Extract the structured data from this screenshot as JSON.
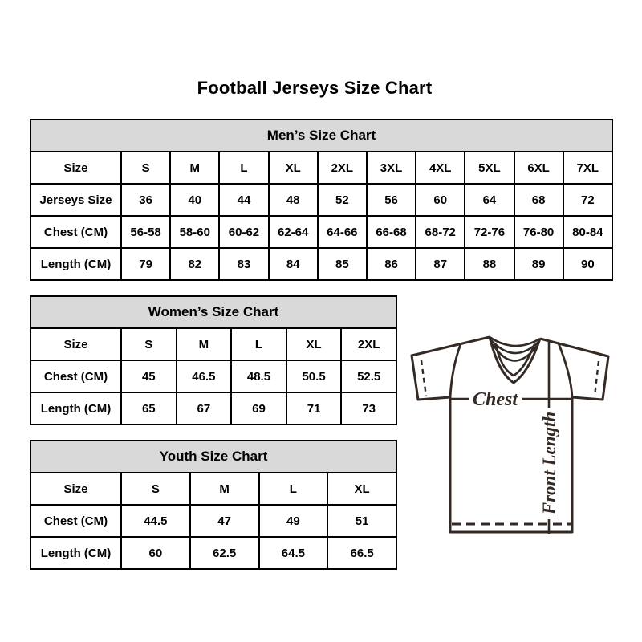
{
  "header": {
    "title": "Football Jerseys Size Chart"
  },
  "colors": {
    "table_header_bg": "#d9d9d9",
    "table_border": "#000000",
    "text": "#000000",
    "jersey_outline": "#342a25"
  },
  "diagram": {
    "chest_label": "Chest",
    "front_length_label": "Front Length"
  },
  "chart_data": [
    {
      "type": "table",
      "title": "Men’s Size Chart",
      "columns": [
        "Size",
        "S",
        "M",
        "L",
        "XL",
        "2XL",
        "3XL",
        "4XL",
        "5XL",
        "6XL",
        "7XL"
      ],
      "rows": [
        [
          "Jerseys Size",
          "36",
          "40",
          "44",
          "48",
          "52",
          "56",
          "60",
          "64",
          "68",
          "72"
        ],
        [
          "Chest (CM)",
          "56-58",
          "58-60",
          "60-62",
          "62-64",
          "64-66",
          "66-68",
          "68-72",
          "72-76",
          "76-80",
          "80-84"
        ],
        [
          "Length (CM)",
          "79",
          "82",
          "83",
          "84",
          "85",
          "86",
          "87",
          "88",
          "89",
          "90"
        ]
      ]
    },
    {
      "type": "table",
      "title": "Women’s Size Chart",
      "columns": [
        "Size",
        "S",
        "M",
        "L",
        "XL",
        "2XL"
      ],
      "rows": [
        [
          "Chest (CM)",
          "45",
          "46.5",
          "48.5",
          "50.5",
          "52.5"
        ],
        [
          "Length (CM)",
          "65",
          "67",
          "69",
          "71",
          "73"
        ]
      ]
    },
    {
      "type": "table",
      "title": "Youth Size Chart",
      "columns": [
        "Size",
        "S",
        "M",
        "L",
        "XL"
      ],
      "rows": [
        [
          "Chest (CM)",
          "44.5",
          "47",
          "49",
          "51"
        ],
        [
          "Length (CM)",
          "60",
          "62.5",
          "64.5",
          "66.5"
        ]
      ]
    }
  ]
}
